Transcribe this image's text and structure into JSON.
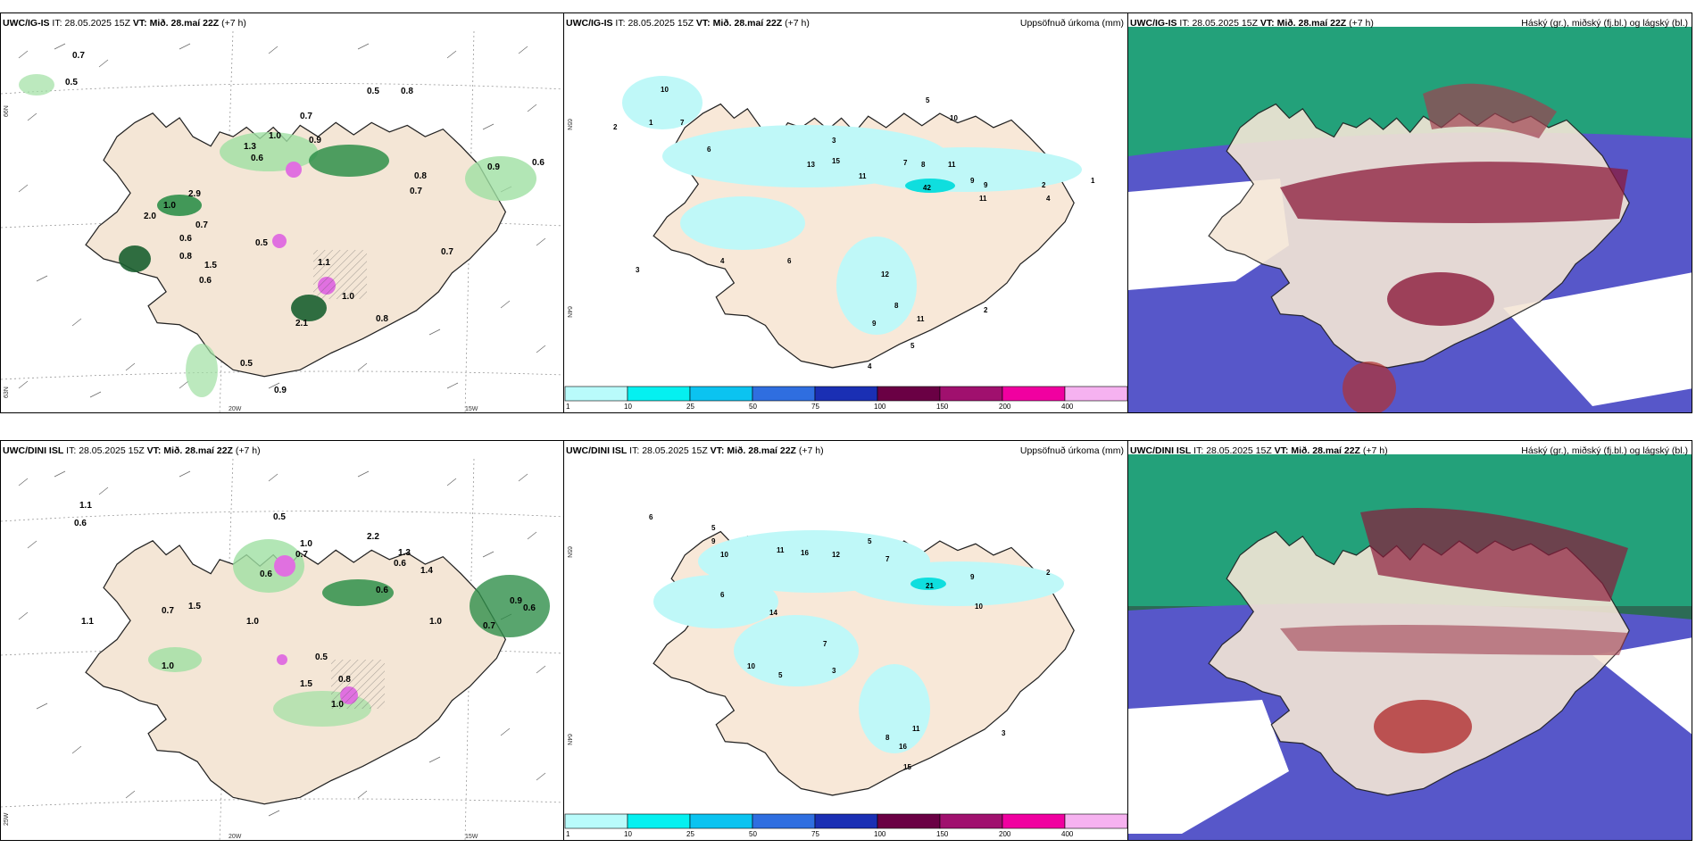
{
  "panels": {
    "p1": {
      "model": "UWC/IG-IS",
      "it_prefix": "IT:",
      "it": "28.05.2025 15Z",
      "vt_prefix": "VT:",
      "vt": "Mið. 28.maí 22Z",
      "lead": "(+7 h)",
      "right_title": ""
    },
    "p2": {
      "model": "UWC/IG-IS",
      "it_prefix": "IT:",
      "it": "28.05.2025 15Z",
      "vt_prefix": "VT:",
      "vt": "Mið. 28.maí 22Z",
      "lead": "(+7 h)",
      "right_title": "Uppsöfnuð úrkoma (mm)"
    },
    "p3": {
      "model": "UWC/IG-IS",
      "it_prefix": "IT:",
      "it": "28.05.2025 15Z",
      "vt_prefix": "VT:",
      "vt": "Mið. 28.maí 22Z",
      "lead": "(+7 h)",
      "right_title": "Háský (gr.), miðský (fj.bl.) og lágský (bl.)"
    },
    "p4": {
      "model": "UWC/DINI ISL",
      "it_prefix": "IT:",
      "it": "28.05.2025 15Z",
      "vt_prefix": "VT:",
      "vt": "Mið. 28.maí 22Z",
      "lead": "(+7 h)",
      "right_title": ""
    },
    "p5": {
      "model": "UWC/DINI ISL",
      "it_prefix": "IT:",
      "it": "28.05.2025 15Z",
      "vt_prefix": "VT:",
      "vt": "Mið. 28.maí 22Z",
      "lead": "(+7 h)",
      "right_title": "Uppsöfnuð úrkoma (mm)"
    },
    "p6": {
      "model": "UWC/DINI ISL",
      "it_prefix": "IT:",
      "it": "28.05.2025 15Z",
      "vt_prefix": "VT:",
      "vt": "Mið. 28.maí 22Z",
      "lead": "(+7 h)",
      "right_title": "Háský (gr.), miðský (fj.bl.) og lágský (bl.)"
    }
  },
  "axes": {
    "lat_65": "65N",
    "lat_64": "64N",
    "lat_66": "66N",
    "lat_63": "63N",
    "lon_20": "20W",
    "lon_15": "15W",
    "lon_25": "25W"
  },
  "colorbar": {
    "labels": [
      "1",
      "10",
      "25",
      "50",
      "75",
      "100",
      "150",
      "200",
      "400"
    ],
    "colors": [
      "#b9fbfb",
      "#05f0f0",
      "#0bc3f0",
      "#2f6ee0",
      "#1a2fb4",
      "#6a0044",
      "#a0106e",
      "#f000a0",
      "#f6b2f0"
    ]
  },
  "precip_labels_top": [
    {
      "v": "0.7"
    },
    {
      "v": "0.5"
    },
    {
      "v": "0.5"
    },
    {
      "v": "0.8"
    },
    {
      "v": "0.7"
    },
    {
      "v": "1.0"
    },
    {
      "v": "0.9"
    },
    {
      "v": "0.6"
    },
    {
      "v": "1.3"
    },
    {
      "v": "0.8"
    },
    {
      "v": "0.7"
    },
    {
      "v": "0.9"
    },
    {
      "v": "0.6"
    },
    {
      "v": "2.9"
    },
    {
      "v": "1.0"
    },
    {
      "v": "2.0"
    },
    {
      "v": "0.7"
    },
    {
      "v": "0.6"
    },
    {
      "v": "0.8"
    },
    {
      "v": "1.5"
    },
    {
      "v": "0.6"
    },
    {
      "v": "0.5"
    },
    {
      "v": "1.1"
    },
    {
      "v": "1.0"
    },
    {
      "v": "0.7"
    },
    {
      "v": "0.8"
    },
    {
      "v": "0.5"
    },
    {
      "v": "0.9"
    },
    {
      "v": "2.1"
    }
  ],
  "precip_labels_bottom": [
    {
      "v": "1.1"
    },
    {
      "v": "0.6"
    },
    {
      "v": "0.5"
    },
    {
      "v": "1.0"
    },
    {
      "v": "0.7"
    },
    {
      "v": "0.6"
    },
    {
      "v": "2.2"
    },
    {
      "v": "1.3"
    },
    {
      "v": "0.6"
    },
    {
      "v": "0.6"
    },
    {
      "v": "1.4"
    },
    {
      "v": "0.7"
    },
    {
      "v": "1.5"
    },
    {
      "v": "1.0"
    },
    {
      "v": "0.9"
    },
    {
      "v": "0.6"
    },
    {
      "v": "0.7"
    },
    {
      "v": "1.0"
    },
    {
      "v": "1.0"
    },
    {
      "v": "0.5"
    },
    {
      "v": "1.5"
    },
    {
      "v": "1.0"
    },
    {
      "v": "0.8"
    },
    {
      "v": "1.1"
    }
  ],
  "accum_labels_top": [
    {
      "v": "10"
    },
    {
      "v": "2"
    },
    {
      "v": "1"
    },
    {
      "v": "7"
    },
    {
      "v": "6"
    },
    {
      "v": "5"
    },
    {
      "v": "10"
    },
    {
      "v": "3"
    },
    {
      "v": "13"
    },
    {
      "v": "15"
    },
    {
      "v": "11"
    },
    {
      "v": "7"
    },
    {
      "v": "9"
    },
    {
      "v": "8"
    },
    {
      "v": "11"
    },
    {
      "v": "42"
    },
    {
      "v": "9"
    },
    {
      "v": "11"
    },
    {
      "v": "2"
    },
    {
      "v": "4"
    },
    {
      "v": "1"
    },
    {
      "v": "3"
    },
    {
      "v": "4"
    },
    {
      "v": "6"
    },
    {
      "v": "12"
    },
    {
      "v": "8"
    },
    {
      "v": "9"
    },
    {
      "v": "11"
    },
    {
      "v": "5"
    },
    {
      "v": "2"
    },
    {
      "v": "4"
    }
  ],
  "accum_labels_bottom": [
    {
      "v": "6"
    },
    {
      "v": "5"
    },
    {
      "v": "9"
    },
    {
      "v": "10"
    },
    {
      "v": "11"
    },
    {
      "v": "16"
    },
    {
      "v": "12"
    },
    {
      "v": "5"
    },
    {
      "v": "7"
    },
    {
      "v": "21"
    },
    {
      "v": "9"
    },
    {
      "v": "10"
    },
    {
      "v": "2"
    },
    {
      "v": "6"
    },
    {
      "v": "14"
    },
    {
      "v": "10"
    },
    {
      "v": "5"
    },
    {
      "v": "7"
    },
    {
      "v": "3"
    },
    {
      "v": "8"
    },
    {
      "v": "16"
    },
    {
      "v": "11"
    },
    {
      "v": "15"
    },
    {
      "v": "3"
    }
  ]
}
